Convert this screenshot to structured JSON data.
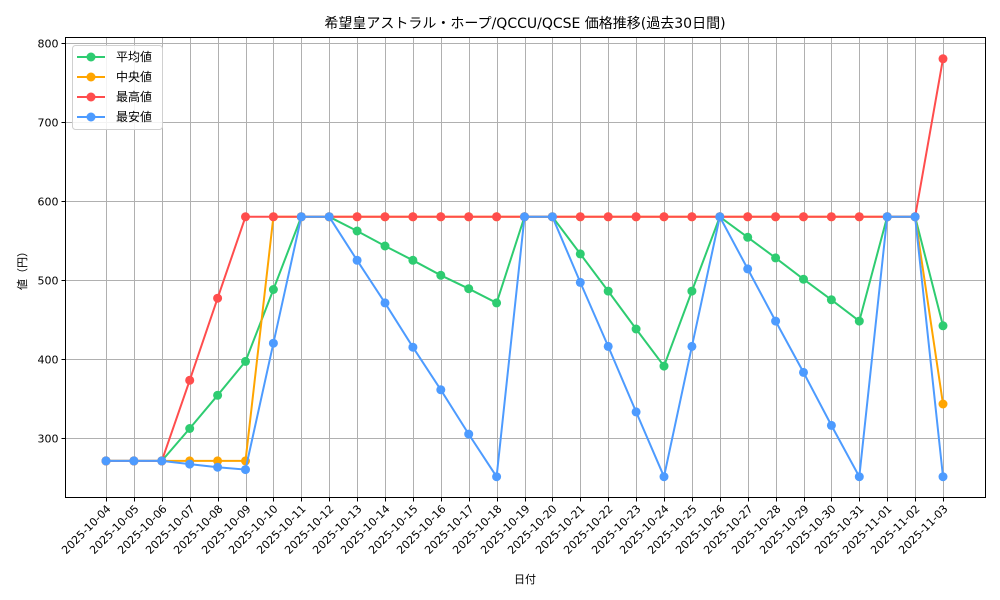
{
  "chart_data": {
    "type": "line",
    "title": "希望皇アストラル・ホープ/QCCU/QCSE 価格推移(過去30日間)",
    "xlabel": "日付",
    "ylabel": "値（円）",
    "ylim": [
      224,
      808
    ],
    "yticks": [
      300,
      400,
      500,
      600,
      700,
      800
    ],
    "grid": true,
    "legend_position": "upper left",
    "categories": [
      "2025-10-04",
      "2025-10-05",
      "2025-10-06",
      "2025-10-07",
      "2025-10-08",
      "2025-10-09",
      "2025-10-10",
      "2025-10-11",
      "2025-10-12",
      "2025-10-13",
      "2025-10-14",
      "2025-10-15",
      "2025-10-16",
      "2025-10-17",
      "2025-10-18",
      "2025-10-19",
      "2025-10-20",
      "2025-10-21",
      "2025-10-22",
      "2025-10-23",
      "2025-10-24",
      "2025-10-25",
      "2025-10-26",
      "2025-10-27",
      "2025-10-28",
      "2025-10-29",
      "2025-10-30",
      "2025-10-31",
      "2025-11-01",
      "2025-11-02",
      "2025-11-03"
    ],
    "series": [
      {
        "name": "平均値",
        "color": "#2ecc71",
        "values": [
          271,
          271,
          271,
          312,
          354,
          397,
          488,
          580,
          580,
          562,
          543,
          525,
          506,
          489,
          471,
          580,
          580,
          533,
          486,
          438,
          391,
          486,
          580,
          554,
          528,
          501,
          475,
          448,
          580,
          580,
          442
        ]
      },
      {
        "name": "中央値",
        "color": "#ffa500",
        "values": [
          271,
          271,
          271,
          271,
          271,
          271,
          580,
          580,
          580,
          580,
          580,
          580,
          580,
          580,
          580,
          580,
          580,
          580,
          580,
          580,
          580,
          580,
          580,
          580,
          580,
          580,
          580,
          580,
          580,
          580,
          343
        ]
      },
      {
        "name": "最高値",
        "color": "#ff4d4d",
        "values": [
          271,
          271,
          271,
          373,
          477,
          580,
          580,
          580,
          580,
          580,
          580,
          580,
          580,
          580,
          580,
          580,
          580,
          580,
          580,
          580,
          580,
          580,
          580,
          580,
          580,
          580,
          580,
          580,
          580,
          580,
          780
        ]
      },
      {
        "name": "最安値",
        "color": "#4d9bff",
        "values": [
          271,
          271,
          271,
          267,
          263,
          260,
          420,
          580,
          580,
          525,
          471,
          415,
          361,
          305,
          251,
          580,
          580,
          497,
          416,
          333,
          251,
          416,
          580,
          514,
          448,
          383,
          316,
          251,
          580,
          580,
          251
        ]
      }
    ]
  }
}
